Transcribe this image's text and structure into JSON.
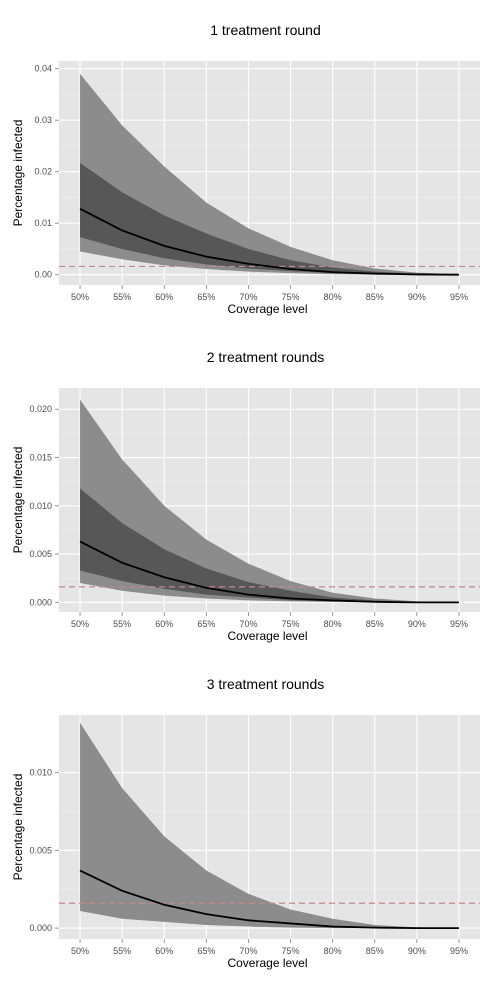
{
  "chart_data": [
    {
      "type": "area",
      "title": "1 treatment round",
      "xlabel": "Coverage level",
      "ylabel": "Percentage infected",
      "categories": [
        "50%",
        "55%",
        "60%",
        "65%",
        "70%",
        "75%",
        "80%",
        "85%",
        "90%",
        "95%"
      ],
      "ylim": [
        -0.002,
        0.0415
      ],
      "yticks": [
        0.0,
        0.01,
        0.02,
        0.03,
        0.04
      ],
      "ytick_labels": [
        "0.00",
        "0.01",
        "0.02",
        "0.03",
        "0.04"
      ],
      "grid": true,
      "outer_band": {
        "upper": [
          0.039,
          0.029,
          0.021,
          0.014,
          0.009,
          0.0054,
          0.0028,
          0.0012,
          0.0004,
          0.0001
        ],
        "lower": [
          0.0045,
          0.003,
          0.0018,
          0.0011,
          0.0006,
          0.0003,
          0.0001,
          3e-05,
          0.0,
          0.0
        ]
      },
      "inner_band": {
        "upper": [
          0.0217,
          0.016,
          0.0115,
          0.008,
          0.005,
          0.0028,
          0.0014,
          0.0006,
          0.0002,
          0.0
        ],
        "lower": [
          0.0073,
          0.005,
          0.0032,
          0.002,
          0.0012,
          0.0007,
          0.0003,
          0.0001,
          0.0,
          0.0
        ]
      },
      "median": [
        0.0128,
        0.0086,
        0.0056,
        0.0035,
        0.0021,
        0.0011,
        0.0005,
        0.0002,
        5e-05,
        0.0
      ],
      "threshold": 0.0016
    },
    {
      "type": "area",
      "title": "2 treatment rounds",
      "xlabel": "Coverage level",
      "ylabel": "Percentage infected",
      "categories": [
        "50%",
        "55%",
        "60%",
        "65%",
        "70%",
        "75%",
        "80%",
        "85%",
        "90%",
        "95%"
      ],
      "ylim": [
        -0.001,
        0.0222
      ],
      "yticks": [
        0.0,
        0.005,
        0.01,
        0.015,
        0.02
      ],
      "ytick_labels": [
        "0.000",
        "0.005",
        "0.010",
        "0.015",
        "0.020"
      ],
      "grid": true,
      "outer_band": {
        "upper": [
          0.021,
          0.0148,
          0.01,
          0.0065,
          0.004,
          0.0022,
          0.001,
          0.0004,
          0.0001,
          0.0
        ],
        "lower": [
          0.002,
          0.0012,
          0.0007,
          0.0004,
          0.0002,
          0.0001,
          3e-05,
          0.0,
          0.0,
          0.0
        ]
      },
      "inner_band": {
        "upper": [
          0.0118,
          0.0082,
          0.0055,
          0.0035,
          0.0021,
          0.0012,
          0.0005,
          0.0002,
          5e-05,
          0.0
        ],
        "lower": [
          0.0033,
          0.0022,
          0.0014,
          0.0008,
          0.0005,
          0.0002,
          0.0001,
          0.0,
          0.0,
          0.0
        ]
      },
      "median": [
        0.0063,
        0.0041,
        0.0026,
        0.0015,
        0.0008,
        0.0004,
        0.0002,
        5e-05,
        0.0,
        0.0
      ],
      "threshold": 0.0016
    },
    {
      "type": "area",
      "title": "3 treatment rounds",
      "xlabel": "Coverage level",
      "ylabel": "Percentage infected",
      "categories": [
        "50%",
        "55%",
        "60%",
        "65%",
        "70%",
        "75%",
        "80%",
        "85%",
        "90%",
        "95%"
      ],
      "ylim": [
        -0.0007,
        0.0137
      ],
      "yticks": [
        0.0,
        0.005,
        0.01
      ],
      "ytick_labels": [
        "0.000",
        "0.005",
        "0.010"
      ],
      "grid": true,
      "outer_band": {
        "upper": [
          0.0132,
          0.009,
          0.0059,
          0.0037,
          0.0022,
          0.0012,
          0.0006,
          0.0002,
          5e-05,
          0.0
        ],
        "lower": [
          0.0011,
          0.0006,
          0.0004,
          0.0002,
          0.0001,
          3e-05,
          0.0,
          0.0,
          0.0,
          0.0
        ]
      },
      "median": [
        0.0037,
        0.0024,
        0.0015,
        0.0009,
        0.0005,
        0.0003,
        0.0001,
        3e-05,
        0.0,
        0.0
      ],
      "threshold": 0.0016
    }
  ],
  "colors": {
    "panel_background": "#e5e5e5",
    "grid_major": "#ffffff",
    "outer_band": "#8c8c8c",
    "inner_band": "#575757",
    "median_line": "#000000",
    "threshold_line": "#c48a8a",
    "tick_text": "#4d4d4d"
  }
}
